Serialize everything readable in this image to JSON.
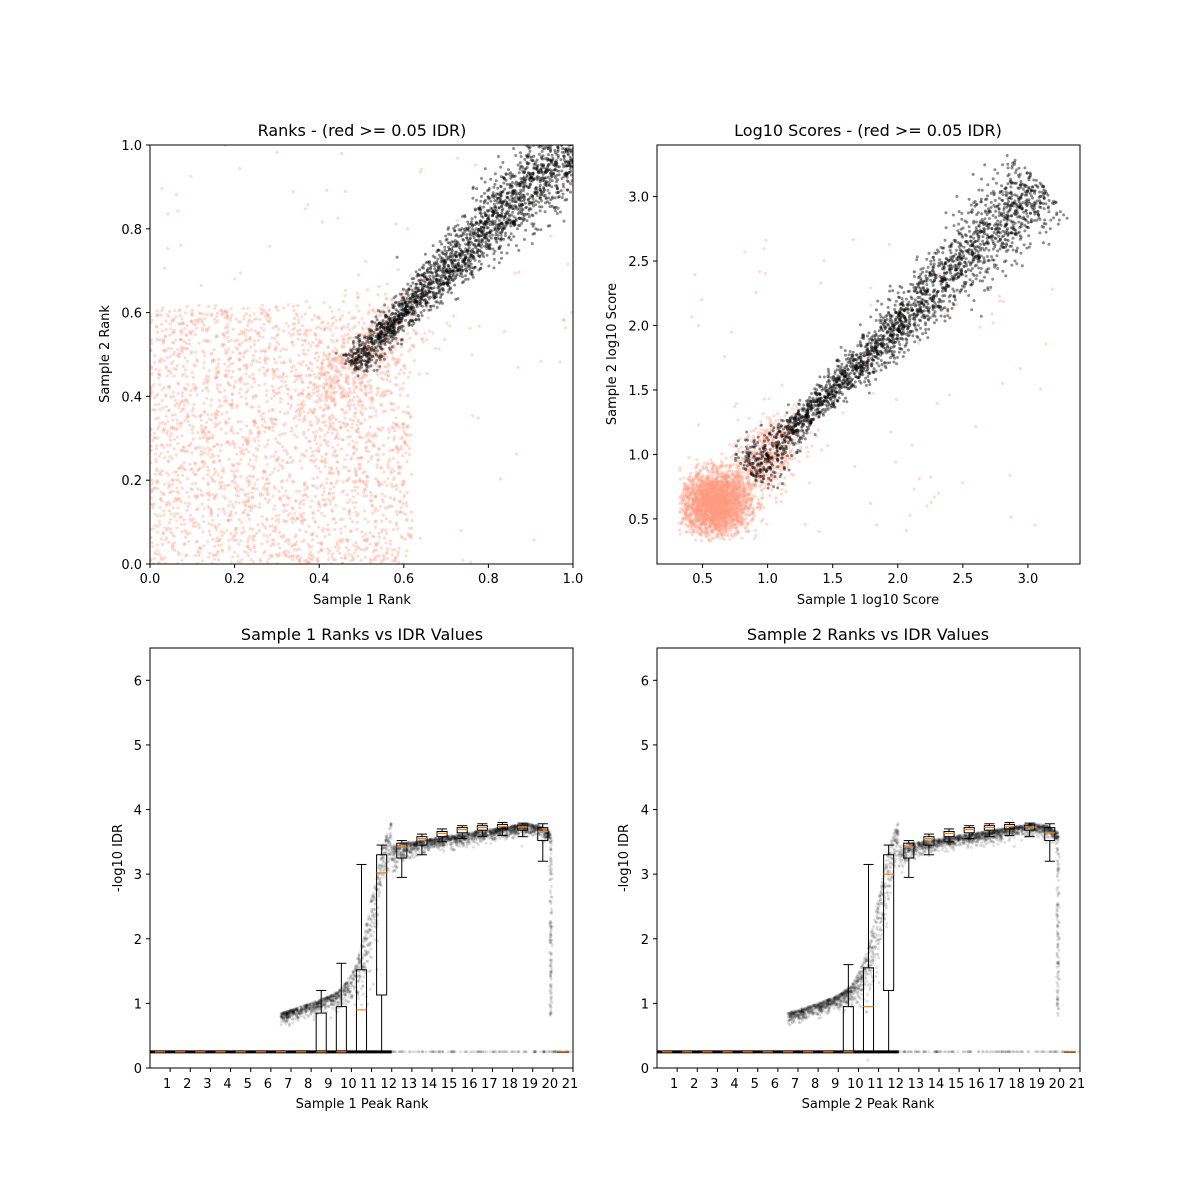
{
  "chart_data": [
    {
      "type": "scatter",
      "title": "Ranks - (red >= 0.05 IDR)",
      "xlabel": "Sample 1 Rank",
      "ylabel": "Sample 2 Rank",
      "xlim": [
        0,
        1
      ],
      "ylim": [
        0,
        1
      ],
      "xticks": [
        "0.0",
        "0.2",
        "0.4",
        "0.6",
        "0.8",
        "1.0"
      ],
      "yticks": [
        "0.0",
        "0.2",
        "0.4",
        "0.6",
        "0.8",
        "1.0"
      ],
      "series": [
        {
          "color": "#ff9a80",
          "description": "peaks with IDR >= 0.05; diffuse cloud in the lower-left, sparse off-diagonal"
        },
        {
          "color": "#000000",
          "description": "peaks with IDR < 0.05; tight band along the diagonal from about (0.47, 0.47) to (1.0, 1.0)"
        }
      ]
    },
    {
      "type": "scatter",
      "title": "Log10 Scores - (red >= 0.05 IDR)",
      "xlabel": "Sample 1 log10 Score",
      "ylabel": "Sample 2 log10 Score",
      "xlim": [
        0.15,
        3.4
      ],
      "ylim": [
        0.15,
        3.4
      ],
      "xticks": [
        "0.5",
        "1.0",
        "1.5",
        "2.0",
        "2.5",
        "3.0"
      ],
      "yticks": [
        "0.5",
        "1.0",
        "1.5",
        "2.0",
        "2.5",
        "3.0"
      ],
      "series": [
        {
          "color": "#ff9a80",
          "description": "dense cluster near (0.6, 0.6) extending to about 1.2"
        },
        {
          "color": "#000000",
          "description": "diagonal band from about (0.85, 0.85) to (3.1, 3.1)"
        }
      ]
    },
    {
      "type": "box",
      "title": "Sample 1 Ranks vs IDR Values",
      "xlabel": "Sample 1 Peak Rank",
      "ylabel": "-log10 IDR",
      "xlim": [
        0,
        21
      ],
      "ylim": [
        0,
        6.5
      ],
      "xticks": [
        "1",
        "2",
        "3",
        "4",
        "5",
        "6",
        "7",
        "8",
        "9",
        "10",
        "11",
        "12",
        "13",
        "14",
        "15",
        "16",
        "17",
        "18",
        "19",
        "20",
        "21"
      ],
      "yticks": [
        "0",
        "1",
        "2",
        "3",
        "4",
        "5",
        "6"
      ],
      "boxes": [
        {
          "x": 1,
          "q1": 0.25,
          "median": 0.25,
          "q3": 0.25,
          "lo": 0.25,
          "hi": 0.25
        },
        {
          "x": 2,
          "q1": 0.25,
          "median": 0.25,
          "q3": 0.25,
          "lo": 0.25,
          "hi": 0.25
        },
        {
          "x": 3,
          "q1": 0.25,
          "median": 0.25,
          "q3": 0.25,
          "lo": 0.25,
          "hi": 0.25
        },
        {
          "x": 4,
          "q1": 0.25,
          "median": 0.25,
          "q3": 0.25,
          "lo": 0.25,
          "hi": 0.25
        },
        {
          "x": 5,
          "q1": 0.25,
          "median": 0.25,
          "q3": 0.25,
          "lo": 0.25,
          "hi": 0.25
        },
        {
          "x": 6,
          "q1": 0.25,
          "median": 0.25,
          "q3": 0.25,
          "lo": 0.25,
          "hi": 0.25
        },
        {
          "x": 7,
          "q1": 0.25,
          "median": 0.25,
          "q3": 0.25,
          "lo": 0.25,
          "hi": 0.25
        },
        {
          "x": 8,
          "q1": 0.25,
          "median": 0.25,
          "q3": 0.25,
          "lo": 0.25,
          "hi": 0.25
        },
        {
          "x": 9,
          "q1": 0.25,
          "median": 0.25,
          "q3": 0.85,
          "lo": 0.25,
          "hi": 1.2
        },
        {
          "x": 10,
          "q1": 0.25,
          "median": 0.25,
          "q3": 0.95,
          "lo": 0.25,
          "hi": 1.62
        },
        {
          "x": 11,
          "q1": 0.25,
          "median": 0.9,
          "q3": 1.52,
          "lo": 0.25,
          "hi": 3.15
        },
        {
          "x": 12,
          "q1": 1.13,
          "median": 3.02,
          "q3": 3.3,
          "lo": 0.25,
          "hi": 3.45
        },
        {
          "x": 13,
          "q1": 3.25,
          "median": 3.42,
          "q3": 3.48,
          "lo": 2.95,
          "hi": 3.52
        },
        {
          "x": 14,
          "q1": 3.45,
          "median": 3.55,
          "q3": 3.58,
          "lo": 3.3,
          "hi": 3.62
        },
        {
          "x": 15,
          "q1": 3.58,
          "median": 3.63,
          "q3": 3.66,
          "lo": 3.5,
          "hi": 3.7
        },
        {
          "x": 16,
          "q1": 3.64,
          "median": 3.69,
          "q3": 3.72,
          "lo": 3.55,
          "hi": 3.75
        },
        {
          "x": 17,
          "q1": 3.68,
          "median": 3.72,
          "q3": 3.75,
          "lo": 3.58,
          "hi": 3.78
        },
        {
          "x": 18,
          "q1": 3.7,
          "median": 3.74,
          "q3": 3.77,
          "lo": 3.6,
          "hi": 3.8
        },
        {
          "x": 19,
          "q1": 3.68,
          "median": 3.73,
          "q3": 3.76,
          "lo": 3.58,
          "hi": 3.79
        },
        {
          "x": 20,
          "q1": 3.52,
          "median": 3.66,
          "q3": 3.72,
          "lo": 3.2,
          "hi": 3.78
        },
        {
          "x": 21,
          "q1": 0.25,
          "median": 0.25,
          "q3": 0.25,
          "lo": 0.25,
          "hi": 0.25
        }
      ]
    },
    {
      "type": "box",
      "title": "Sample 2 Ranks vs IDR Values",
      "xlabel": "Sample 2 Peak Rank",
      "ylabel": "-log10 IDR",
      "xlim": [
        0,
        21
      ],
      "ylim": [
        0,
        6.5
      ],
      "xticks": [
        "1",
        "2",
        "3",
        "4",
        "5",
        "6",
        "7",
        "8",
        "9",
        "10",
        "11",
        "12",
        "13",
        "14",
        "15",
        "16",
        "17",
        "18",
        "19",
        "20",
        "21"
      ],
      "yticks": [
        "0",
        "1",
        "2",
        "3",
        "4",
        "5",
        "6"
      ],
      "boxes": [
        {
          "x": 1,
          "q1": 0.25,
          "median": 0.25,
          "q3": 0.25,
          "lo": 0.25,
          "hi": 0.25
        },
        {
          "x": 2,
          "q1": 0.25,
          "median": 0.25,
          "q3": 0.25,
          "lo": 0.25,
          "hi": 0.25
        },
        {
          "x": 3,
          "q1": 0.25,
          "median": 0.25,
          "q3": 0.25,
          "lo": 0.25,
          "hi": 0.25
        },
        {
          "x": 4,
          "q1": 0.25,
          "median": 0.25,
          "q3": 0.25,
          "lo": 0.25,
          "hi": 0.25
        },
        {
          "x": 5,
          "q1": 0.25,
          "median": 0.25,
          "q3": 0.25,
          "lo": 0.25,
          "hi": 0.25
        },
        {
          "x": 6,
          "q1": 0.25,
          "median": 0.25,
          "q3": 0.25,
          "lo": 0.25,
          "hi": 0.25
        },
        {
          "x": 7,
          "q1": 0.25,
          "median": 0.25,
          "q3": 0.25,
          "lo": 0.25,
          "hi": 0.25
        },
        {
          "x": 8,
          "q1": 0.25,
          "median": 0.25,
          "q3": 0.25,
          "lo": 0.25,
          "hi": 0.25
        },
        {
          "x": 9,
          "q1": 0.25,
          "median": 0.25,
          "q3": 0.25,
          "lo": 0.25,
          "hi": 0.25
        },
        {
          "x": 10,
          "q1": 0.25,
          "median": 0.25,
          "q3": 0.95,
          "lo": 0.25,
          "hi": 1.6
        },
        {
          "x": 11,
          "q1": 0.25,
          "median": 0.95,
          "q3": 1.55,
          "lo": 0.25,
          "hi": 3.15
        },
        {
          "x": 12,
          "q1": 1.2,
          "median": 3.0,
          "q3": 3.3,
          "lo": 0.25,
          "hi": 3.45
        },
        {
          "x": 13,
          "q1": 3.25,
          "median": 3.42,
          "q3": 3.48,
          "lo": 2.95,
          "hi": 3.52
        },
        {
          "x": 14,
          "q1": 3.45,
          "median": 3.55,
          "q3": 3.58,
          "lo": 3.3,
          "hi": 3.62
        },
        {
          "x": 15,
          "q1": 3.58,
          "median": 3.63,
          "q3": 3.66,
          "lo": 3.5,
          "hi": 3.7
        },
        {
          "x": 16,
          "q1": 3.64,
          "median": 3.69,
          "q3": 3.72,
          "lo": 3.55,
          "hi": 3.75
        },
        {
          "x": 17,
          "q1": 3.68,
          "median": 3.72,
          "q3": 3.75,
          "lo": 3.58,
          "hi": 3.78
        },
        {
          "x": 18,
          "q1": 3.7,
          "median": 3.74,
          "q3": 3.77,
          "lo": 3.6,
          "hi": 3.8
        },
        {
          "x": 19,
          "q1": 3.68,
          "median": 3.73,
          "q3": 3.76,
          "lo": 3.58,
          "hi": 3.79
        },
        {
          "x": 20,
          "q1": 3.52,
          "median": 3.64,
          "q3": 3.72,
          "lo": 3.2,
          "hi": 3.78
        },
        {
          "x": 21,
          "q1": 0.25,
          "median": 0.25,
          "q3": 0.25,
          "lo": 0.25,
          "hi": 0.25
        }
      ]
    }
  ]
}
